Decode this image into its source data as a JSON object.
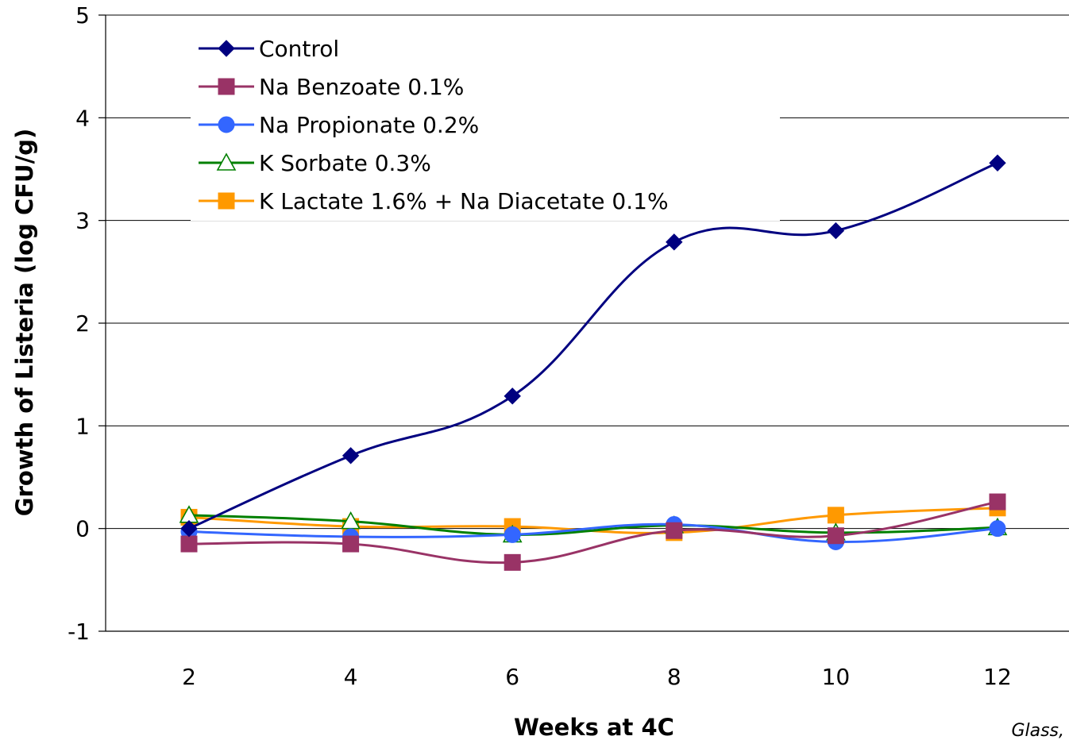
{
  "chart_data": {
    "type": "line",
    "xlabel": "Weeks at 4C",
    "ylabel": "Growth of Listeria (log CFU/g)",
    "x": [
      2,
      4,
      6,
      8,
      10,
      12
    ],
    "x_ticks": [
      "2",
      "4",
      "6",
      "8",
      "10",
      "12"
    ],
    "ylim": [
      -1,
      5
    ],
    "y_ticks": [
      "-1",
      "0",
      "1",
      "2",
      "3",
      "4",
      "5"
    ],
    "grid": "horizontal",
    "legend_position": "top-left",
    "credit": "Glass,",
    "series": [
      {
        "name": "Control",
        "color": "#000080",
        "marker": "diamond",
        "values": [
          0.0,
          0.71,
          1.29,
          2.79,
          2.9,
          3.56
        ]
      },
      {
        "name": "Na Benzoate 0.1%",
        "color": "#993366",
        "marker": "square",
        "values": [
          -0.15,
          -0.15,
          -0.33,
          -0.02,
          -0.07,
          0.26
        ]
      },
      {
        "name": "Na Propionate 0.2%",
        "color": "#3366FF",
        "marker": "circle",
        "values": [
          -0.03,
          -0.08,
          -0.06,
          0.04,
          -0.13,
          0.0
        ]
      },
      {
        "name": "K Sorbate 0.3%",
        "color": "#008000",
        "marker": "triangle-open",
        "values": [
          0.13,
          0.07,
          -0.06,
          0.03,
          -0.04,
          0.01
        ]
      },
      {
        "name": "K Lactate 1.6% + Na Diacetate 0.1%",
        "color": "#FF9900",
        "marker": "square",
        "values": [
          0.11,
          0.02,
          0.02,
          -0.04,
          0.13,
          0.2
        ]
      }
    ]
  }
}
